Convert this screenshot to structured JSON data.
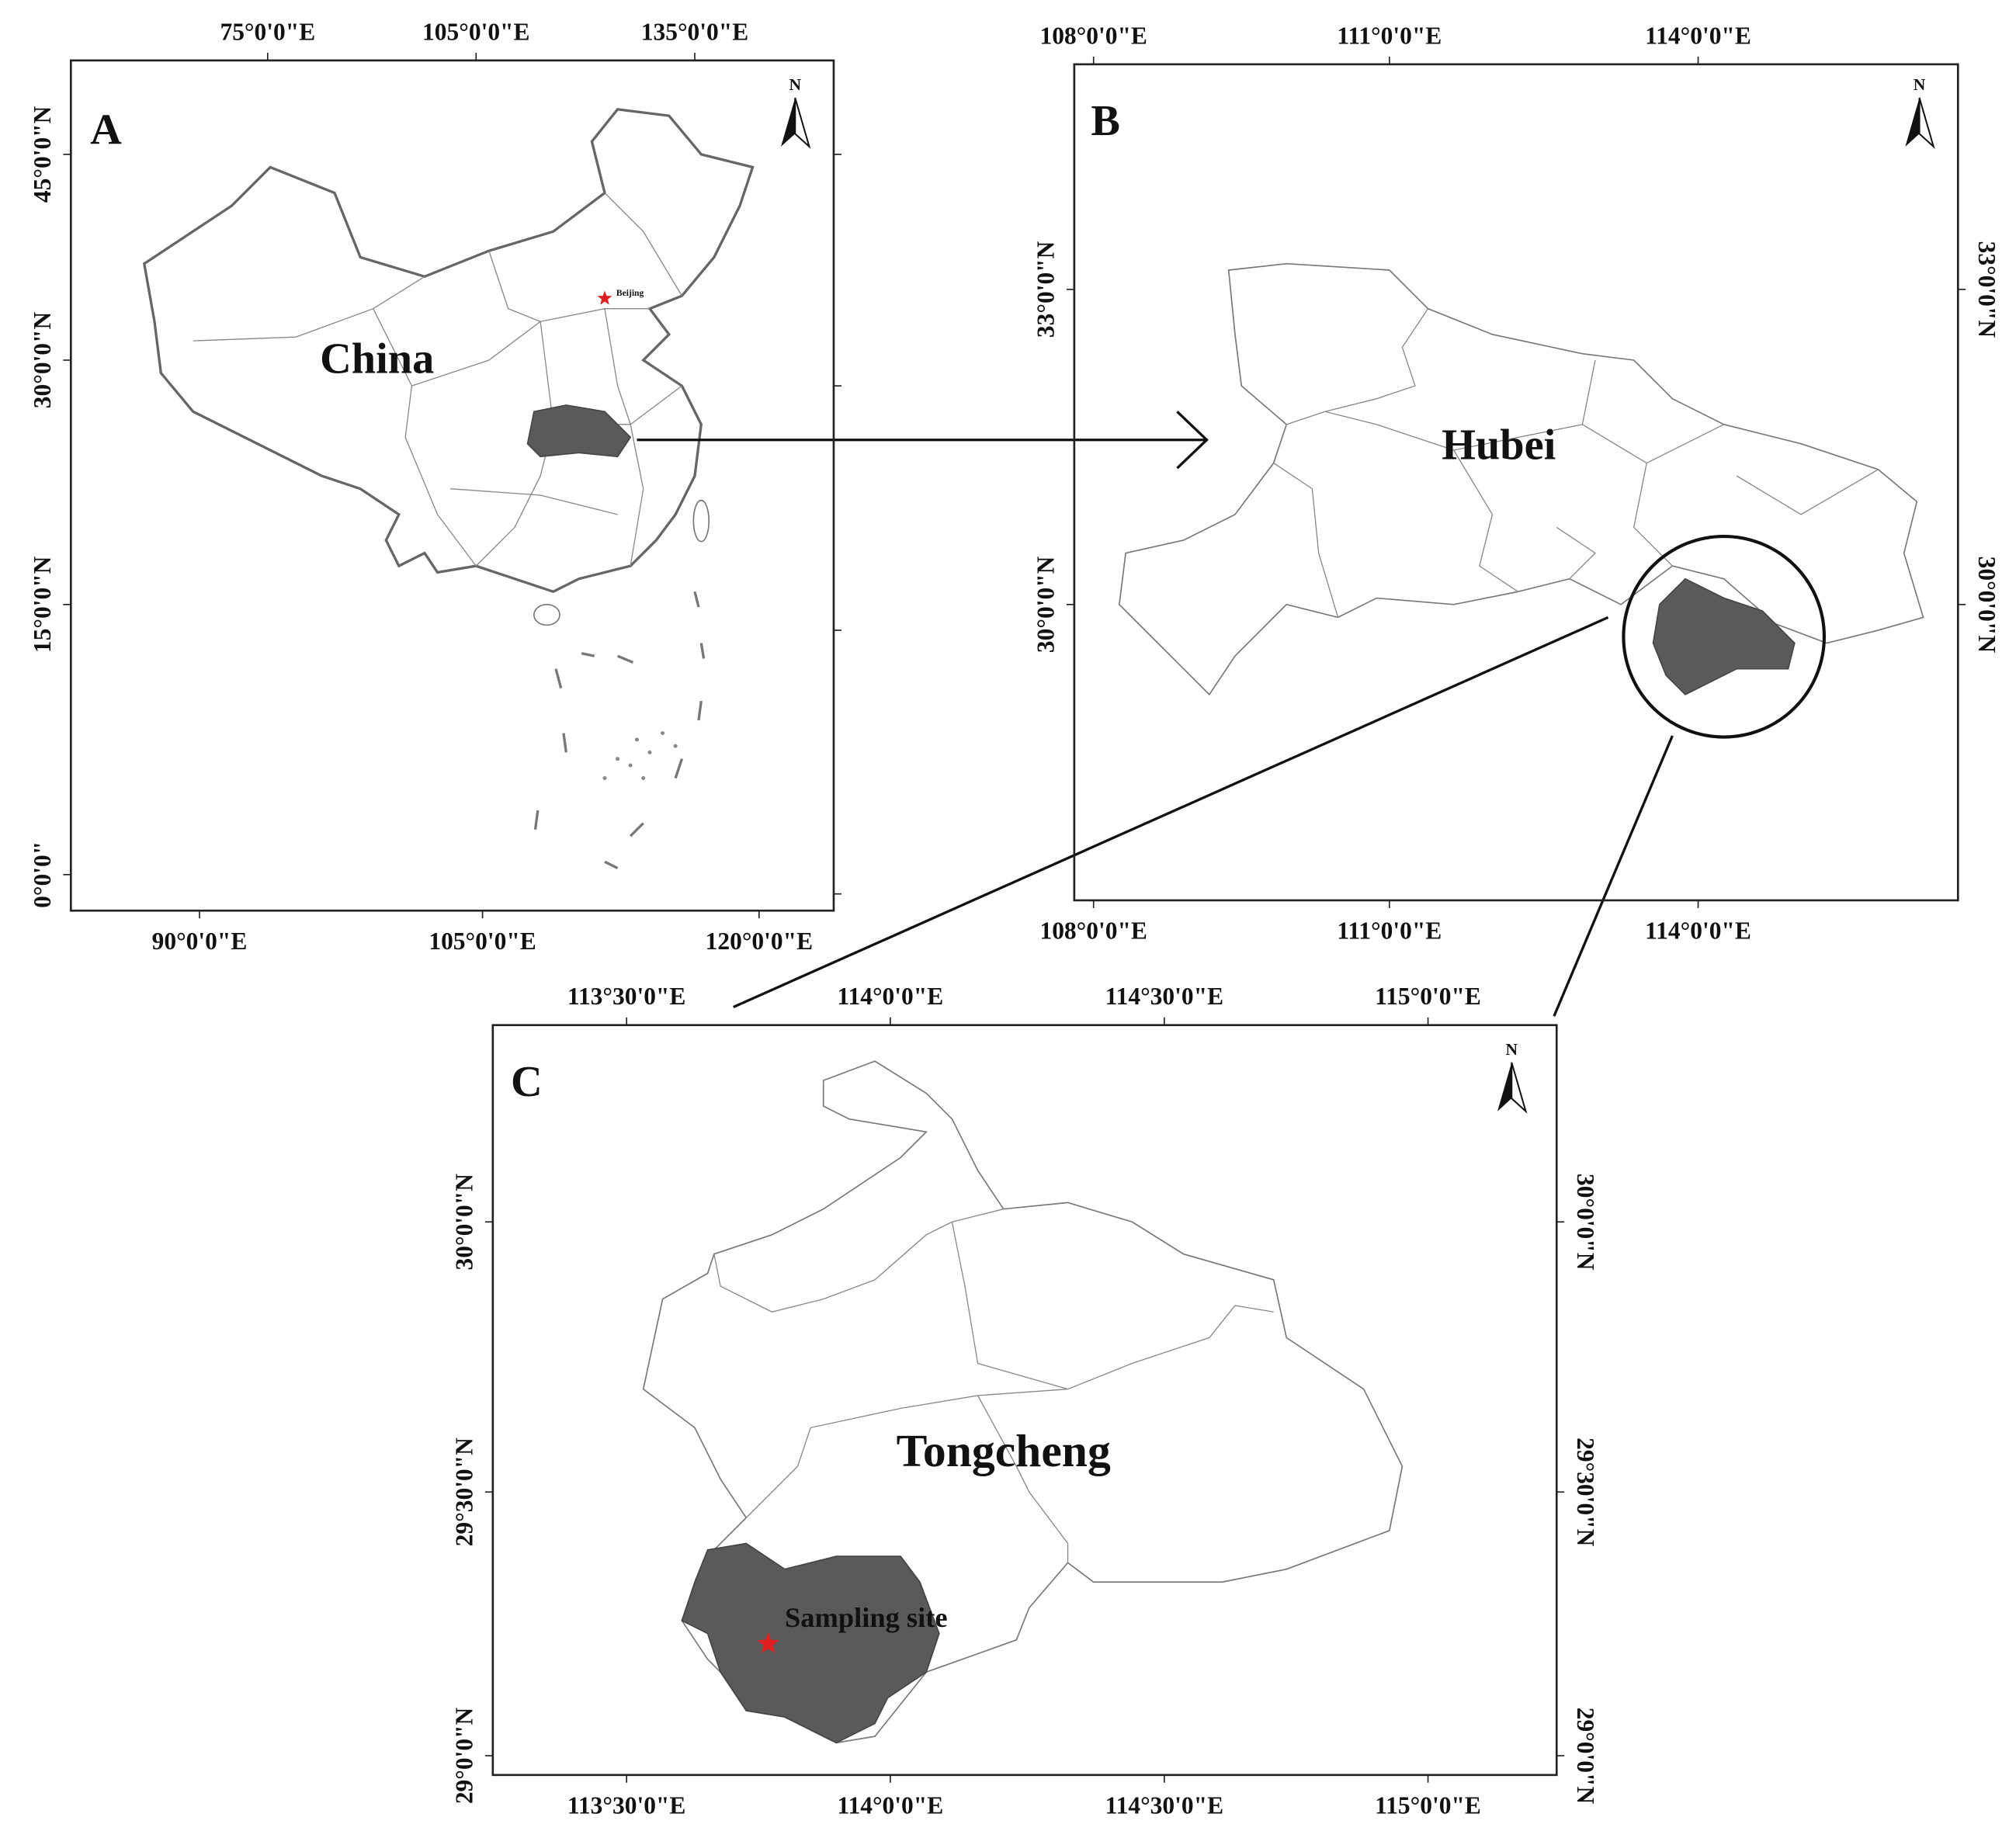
{
  "panels": [
    {
      "label": "A",
      "region": "China",
      "north": "N",
      "capital": "Beijing",
      "top_labels": [
        "75°0'0\"E",
        "105°0'0\"E",
        "135°0'0\"E"
      ],
      "bottom_labels": [
        "90°0'0\"E",
        "105°0'0\"E",
        "120°0'0\"E"
      ],
      "left_labels": [
        "45°0'0\"N",
        "30°0'0\"N",
        "15°0'0\"N",
        "0°0'0\""
      ]
    },
    {
      "label": "B",
      "region": "Hubei",
      "north": "N",
      "top_labels": [
        "108°0'0\"E",
        "111°0'0\"E",
        "114°0'0\"E"
      ],
      "bottom_labels": [
        "108°0'0\"E",
        "111°0'0\"E",
        "114°0'0\"E"
      ],
      "left_labels": [
        "33°0'0\"N",
        "30°0'0\"N"
      ],
      "right_labels": [
        "33°0'0\"N",
        "30°0'0\"N"
      ]
    },
    {
      "label": "C",
      "region": "Tongcheng",
      "north": "N",
      "site": "Sampling site",
      "top_labels": [
        "113°30'0\"E",
        "114°0'0\"E",
        "114°30'0\"E",
        "115°0'0\"E"
      ],
      "bottom_labels": [
        "113°30'0\"E",
        "114°0'0\"E",
        "114°30'0\"E",
        "115°0'0\"E"
      ],
      "left_labels": [
        "30°0'0\"N",
        "29°30'0\"N",
        "29°0'0\"N"
      ],
      "right_labels": [
        "30°0'0\"N",
        "29°30'0\"N",
        "29°0'0\"N"
      ]
    }
  ]
}
